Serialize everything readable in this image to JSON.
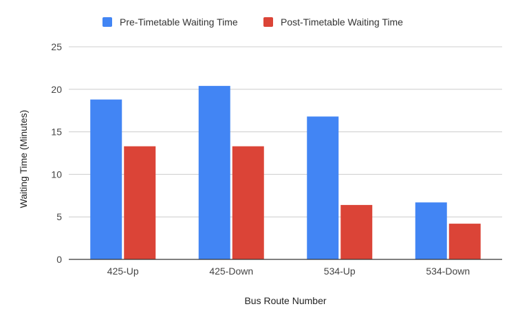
{
  "chart_data": {
    "type": "bar",
    "title": "",
    "xlabel": "Bus Route Number",
    "ylabel": "Waiting Time (Minutes)",
    "categories": [
      "425-Up",
      "425-Down",
      "534-Up",
      "534-Down"
    ],
    "series": [
      {
        "name": "Pre-Timetable Waiting Time",
        "color": "#4285f4",
        "values": [
          18.8,
          20.4,
          16.8,
          6.7
        ]
      },
      {
        "name": "Post-Timetable Waiting Time",
        "color": "#db4437",
        "values": [
          13.3,
          13.3,
          6.4,
          4.2
        ]
      }
    ],
    "ylim": [
      0,
      25
    ],
    "yticks": [
      0,
      5,
      10,
      15,
      20,
      25
    ],
    "grid": true,
    "legend_position": "top-center"
  }
}
